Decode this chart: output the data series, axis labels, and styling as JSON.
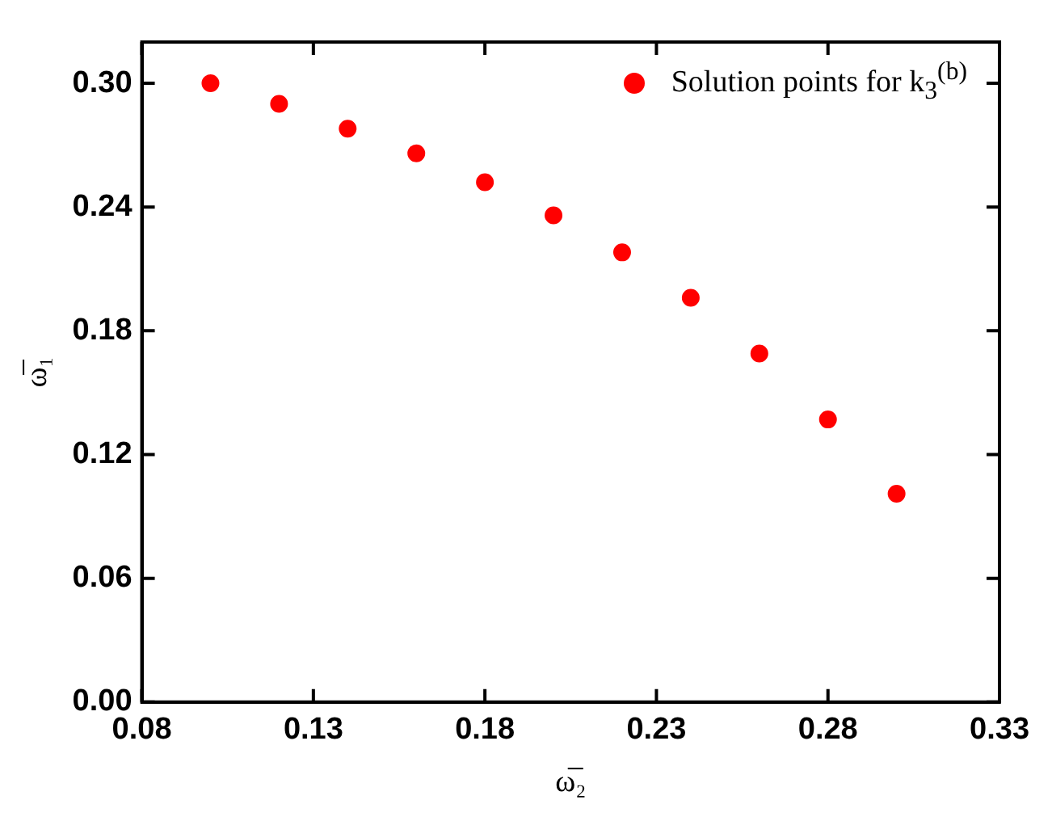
{
  "chart_data": {
    "type": "scatter",
    "xlabel": "ω̅₂",
    "ylabel": "ω̅₁",
    "x": [
      0.1,
      0.12,
      0.14,
      0.16,
      0.18,
      0.2,
      0.22,
      0.24,
      0.26,
      0.28,
      0.3
    ],
    "series": [
      {
        "name": "Solution points for k$_{3}$$^{(b)}$",
        "color": "#ff0000",
        "values": [
          0.3,
          0.29,
          0.278,
          0.266,
          0.252,
          0.236,
          0.218,
          0.196,
          0.169,
          0.137,
          0.101
        ]
      }
    ],
    "xlim": [
      0.08,
      0.33
    ],
    "xticks": [
      0.08,
      0.13,
      0.18,
      0.23,
      0.28,
      0.33
    ],
    "ylim": [
      0,
      0.32
    ],
    "yticks": [
      {
        "value": 0,
        "label": "0.00"
      },
      0.06,
      0.12,
      0.18,
      0.24,
      {
        "value": 0.3,
        "label": "0.30"
      }
    ],
    "legend": "top right",
    "grid": false,
    "marker": "circle"
  }
}
